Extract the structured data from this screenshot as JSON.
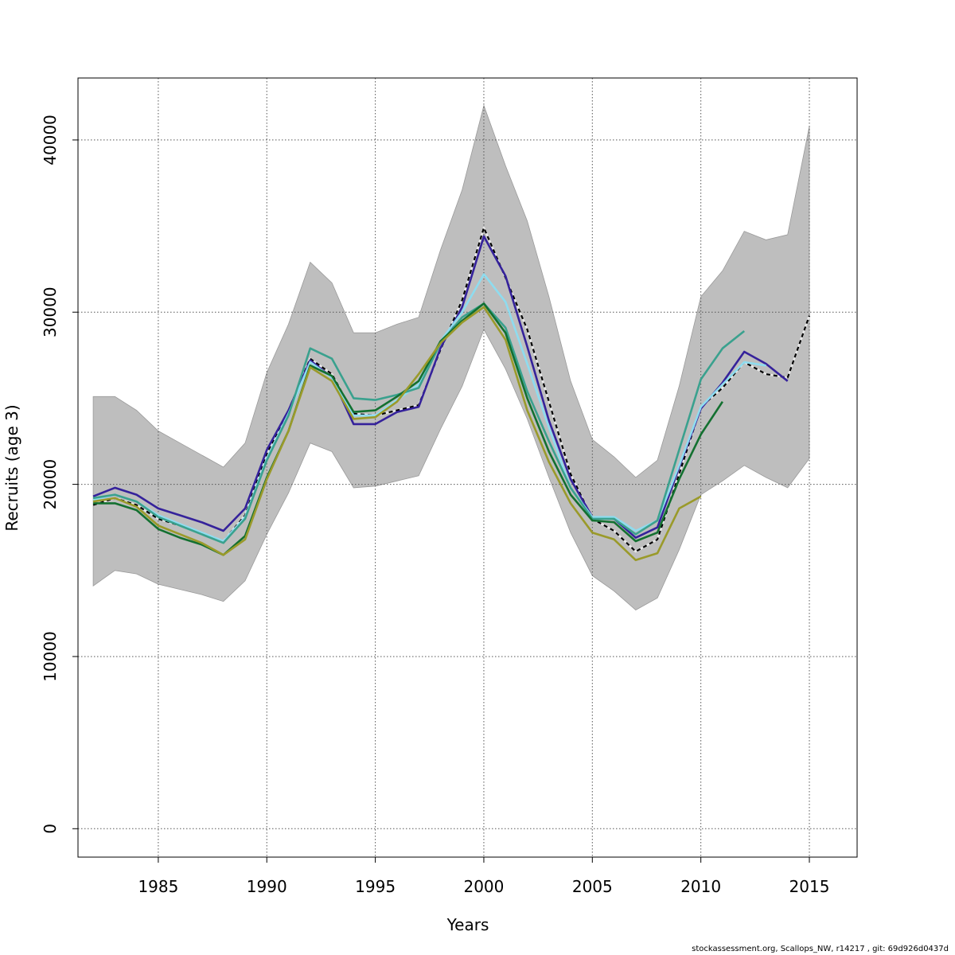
{
  "chart_data": {
    "type": "line",
    "title": "",
    "xlabel": "Years",
    "ylabel": "Recruits (age 3)",
    "xlim": [
      1981.3,
      2017.2
    ],
    "ylim": [
      -1650,
      43600
    ],
    "x_ticks": [
      1985,
      1990,
      1995,
      2000,
      2005,
      2010,
      2015
    ],
    "y_ticks": [
      0,
      10000,
      20000,
      30000,
      40000
    ],
    "grid": true,
    "legend": "none",
    "confidence_band": {
      "color": "#bebebe",
      "x": [
        1982,
        1983,
        1984,
        1985,
        1986,
        1987,
        1988,
        1989,
        1990,
        1991,
        1992,
        1993,
        1994,
        1995,
        1996,
        1997,
        1998,
        1999,
        2000,
        2001,
        2002,
        2003,
        2004,
        2005,
        2006,
        2007,
        2008,
        2009,
        2010,
        2011,
        2012,
        2013,
        2014,
        2015
      ],
      "upper": [
        25100,
        25100,
        24300,
        23100,
        22400,
        21700,
        21000,
        22400,
        26500,
        29300,
        32900,
        31700,
        28800,
        28800,
        29300,
        29700,
        33600,
        37100,
        42000,
        38500,
        35300,
        30900,
        26000,
        22600,
        21600,
        20400,
        21400,
        25700,
        30900,
        32400,
        34700,
        34200,
        34500,
        40800
      ],
      "lower": [
        14100,
        15000,
        14800,
        14200,
        13900,
        13600,
        13200,
        14400,
        17100,
        19500,
        22400,
        21900,
        19800,
        19900,
        20200,
        20500,
        23200,
        25700,
        29000,
        26700,
        23800,
        20400,
        17200,
        14700,
        13800,
        12700,
        13400,
        16200,
        19400,
        20200,
        21100,
        20400,
        19800,
        21500
      ]
    },
    "series": [
      {
        "color": "#e8e8e8",
        "style": "solid",
        "x": [
          1982,
          1983,
          1984,
          1985,
          1986,
          1987,
          1988,
          1989,
          1990,
          1991,
          1992,
          1993,
          1994,
          1995,
          1996,
          1997,
          1998,
          1999,
          2000,
          2001,
          2002,
          2003,
          2004,
          2005,
          2006,
          2007,
          2008,
          2009,
          2010,
          2011,
          2012,
          2013,
          2014,
          2015
        ],
        "values": [
          18800,
          19200,
          18800,
          18000,
          17600,
          17200,
          16700,
          18200,
          21800,
          24300,
          27300,
          26400,
          24100,
          24000,
          24300,
          24600,
          27800,
          30700,
          34900,
          32000,
          29000,
          24800,
          20600,
          18000,
          17300,
          16100,
          16800,
          20600,
          24500,
          25600,
          27100,
          26400,
          26200,
          29800
        ]
      },
      {
        "color": "#000000",
        "style": "dashed",
        "x": [
          1982,
          1983,
          1984,
          1985,
          1986,
          1987,
          1988,
          1989,
          1990,
          1991,
          1992,
          1993,
          1994,
          1995,
          1996,
          1997,
          1998,
          1999,
          2000,
          2001,
          2002,
          2003,
          2004,
          2005,
          2006,
          2007,
          2008,
          2009,
          2010,
          2011,
          2012,
          2013,
          2014,
          2015
        ],
        "values": [
          18800,
          19200,
          18800,
          18000,
          17600,
          17200,
          16700,
          18200,
          21800,
          24300,
          27300,
          26400,
          24100,
          24000,
          24300,
          24600,
          27800,
          30700,
          34900,
          32000,
          29000,
          24800,
          20600,
          18000,
          17300,
          16100,
          16800,
          20600,
          24500,
          25600,
          27100,
          26400,
          26200,
          29800
        ]
      },
      {
        "color": "#35229b",
        "style": "solid",
        "x": [
          1982,
          1983,
          1984,
          1985,
          1986,
          1987,
          1988,
          1989,
          1990,
          1991,
          1992,
          1993,
          1994,
          1995,
          1996,
          1997,
          1998,
          1999,
          2000,
          2001,
          2002,
          2003,
          2004,
          2005,
          2006,
          2007,
          2008,
          2009,
          2010,
          2011,
          2012,
          2013,
          2014
        ],
        "values": [
          19300,
          19800,
          19400,
          18600,
          18200,
          17800,
          17300,
          18600,
          22000,
          24300,
          27200,
          26200,
          23500,
          23500,
          24200,
          24500,
          27900,
          30300,
          34400,
          32100,
          28000,
          23700,
          20300,
          18100,
          18000,
          16900,
          17500,
          21000,
          24400,
          25900,
          27700,
          27000,
          26000
        ]
      },
      {
        "color": "#8edcef",
        "style": "solid",
        "x": [
          1982,
          1983,
          1984,
          1985,
          1986,
          1987,
          1988,
          1989,
          1990,
          1991,
          1992,
          1993,
          1994,
          1995,
          1996,
          1997,
          1998,
          1999,
          2000,
          2001,
          2002,
          2003,
          2004,
          2005,
          2006,
          2007,
          2008,
          2009,
          2010,
          2011,
          2012,
          2013
        ],
        "values": [
          19100,
          19400,
          19000,
          18200,
          17700,
          17200,
          16700,
          18100,
          21500,
          24100,
          27100,
          26200,
          24000,
          24000,
          24900,
          25800,
          28300,
          30000,
          32200,
          30600,
          27000,
          23300,
          19800,
          18100,
          18100,
          17300,
          17900,
          21100,
          24500,
          25800,
          27100,
          26900
        ]
      },
      {
        "color": "#3aa18e",
        "style": "solid",
        "x": [
          1982,
          1983,
          1984,
          1985,
          1986,
          1987,
          1988,
          1989,
          1990,
          1991,
          1992,
          1993,
          1994,
          1995,
          1996,
          1997,
          1998,
          1999,
          2000,
          2001,
          2002,
          2003,
          2004,
          2005,
          2006,
          2007,
          2008,
          2009,
          2010,
          2011,
          2012
        ],
        "values": [
          19200,
          19400,
          19000,
          18100,
          17600,
          17100,
          16600,
          18000,
          21400,
          24000,
          27900,
          27300,
          25000,
          24900,
          25200,
          25600,
          28200,
          29700,
          30500,
          29100,
          25400,
          22500,
          19800,
          18000,
          18000,
          17100,
          17900,
          22000,
          26100,
          27900,
          28900
        ]
      },
      {
        "color": "#137030",
        "style": "solid",
        "x": [
          1982,
          1983,
          1984,
          1985,
          1986,
          1987,
          1988,
          1989,
          1990,
          1991,
          1992,
          1993,
          1994,
          1995,
          1996,
          1997,
          1998,
          1999,
          2000,
          2001,
          2002,
          2003,
          2004,
          2005,
          2006,
          2007,
          2008,
          2009,
          2010,
          2011
        ],
        "values": [
          18900,
          18900,
          18500,
          17400,
          16900,
          16500,
          15900,
          17000,
          20400,
          23100,
          26900,
          26300,
          24200,
          24300,
          25100,
          26000,
          28300,
          29500,
          30500,
          28800,
          25000,
          21900,
          19400,
          17900,
          17800,
          16700,
          17200,
          20300,
          22900,
          24800
        ]
      },
      {
        "color": "#9a9a2a",
        "style": "solid",
        "x": [
          1982,
          1983,
          1984,
          1985,
          1986,
          1987,
          1988,
          1989,
          1990,
          1991,
          1992,
          1993,
          1994,
          1995,
          1996,
          1997,
          1998,
          1999,
          2000,
          2001,
          2002,
          2003,
          2004,
          2005,
          2006,
          2007,
          2008,
          2009,
          2010
        ],
        "values": [
          19000,
          19200,
          18700,
          17600,
          17100,
          16600,
          15900,
          16800,
          20300,
          23100,
          26800,
          26000,
          23800,
          23900,
          24800,
          26400,
          28200,
          29400,
          30300,
          28400,
          24300,
          21300,
          18900,
          17200,
          16800,
          15600,
          16000,
          18600,
          19300
        ]
      }
    ]
  },
  "footer": "stockassessment.org, Scallops_NW, r14217 , git: 69d926d0437d"
}
